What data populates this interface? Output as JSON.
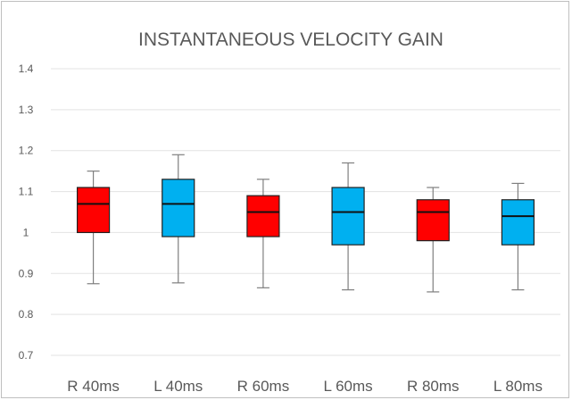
{
  "chart_data": {
    "type": "boxplot",
    "title": "INSTANTANEOUS VELOCITY GAIN",
    "xlabel": "",
    "ylabel": "",
    "ylim": [
      0.7,
      1.4
    ],
    "yticks": [
      0.7,
      0.8,
      0.9,
      1,
      1.1,
      1.2,
      1.3,
      1.4
    ],
    "ytick_labels": [
      "0.7",
      "0.8",
      "0.9",
      "1",
      "1.1",
      "1.2",
      "1.3",
      "1.4"
    ],
    "grid": true,
    "legend": "none",
    "categories": [
      "R 40ms",
      "L 40ms",
      "R 60ms",
      "L 60ms",
      "R 80ms",
      "L 80ms"
    ],
    "boxes": [
      {
        "min": 0.875,
        "q1": 1.0,
        "median": 1.07,
        "q3": 1.11,
        "max": 1.15,
        "color": "#ff0000"
      },
      {
        "min": 0.877,
        "q1": 0.99,
        "median": 1.07,
        "q3": 1.13,
        "max": 1.19,
        "color": "#00b0f0"
      },
      {
        "min": 0.865,
        "q1": 0.99,
        "median": 1.05,
        "q3": 1.09,
        "max": 1.13,
        "color": "#ff0000"
      },
      {
        "min": 0.86,
        "q1": 0.97,
        "median": 1.05,
        "q3": 1.11,
        "max": 1.17,
        "color": "#00b0f0"
      },
      {
        "min": 0.855,
        "q1": 0.98,
        "median": 1.05,
        "q3": 1.08,
        "max": 1.11,
        "color": "#ff0000"
      },
      {
        "min": 0.86,
        "q1": 0.97,
        "median": 1.04,
        "q3": 1.08,
        "max": 1.12,
        "color": "#00b0f0"
      }
    ]
  }
}
